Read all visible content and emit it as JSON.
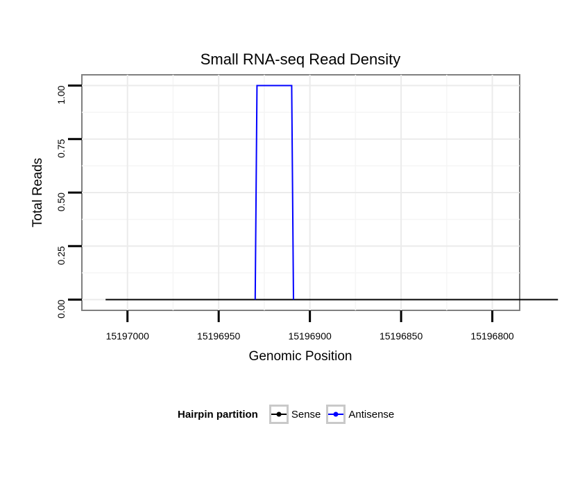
{
  "chart_data": {
    "type": "line",
    "title": "Small RNA-seq Read Density",
    "xlabel": "Genomic Position",
    "ylabel": "Total Reads",
    "x_reversed": true,
    "xlim": [
      15197025,
      15196785
    ],
    "ylim": [
      -0.05,
      1.05
    ],
    "x_ticks": [
      15197000,
      15196950,
      15196900,
      15196850,
      15196800
    ],
    "x_tick_labels": [
      "15197000",
      "15196950",
      "15196900",
      "15196850",
      "15196800"
    ],
    "y_ticks": [
      0,
      0.25,
      0.5,
      0.75,
      1.0
    ],
    "y_tick_labels": [
      "0.00",
      "0.25",
      "0.50",
      "0.75",
      "1.00"
    ],
    "grid": true,
    "legend_position": "bottom",
    "legend_title": "Hairpin partition",
    "series": [
      {
        "name": "Sense",
        "color": "#000000",
        "x": [
          15197012,
          15196764
        ],
        "y": [
          0,
          0
        ]
      },
      {
        "name": "Antisense",
        "color": "#0000ff",
        "x": [
          15196930,
          15196929,
          15196910,
          15196909
        ],
        "y": [
          0,
          1,
          1,
          0
        ]
      }
    ]
  }
}
